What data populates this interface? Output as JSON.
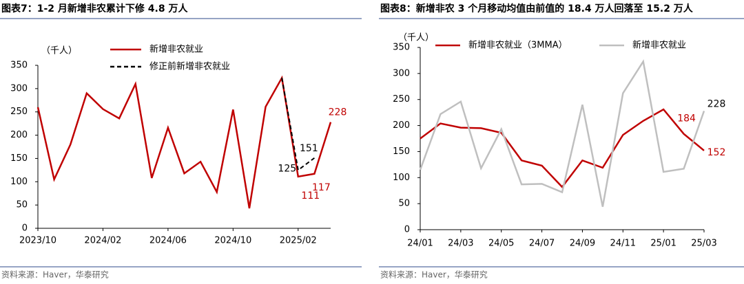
{
  "chart_data": [
    {
      "type": "line",
      "title": "图表7：1-2 月新增非农累计下修 4.8 万人",
      "unit": "（千人）",
      "source": "资料来源：Haver，华泰研究",
      "categories": [
        "2023/10",
        null,
        null,
        null,
        "2024/02",
        null,
        null,
        null,
        "2024/06",
        null,
        null,
        null,
        "2024/10",
        null,
        null,
        null,
        "2025/02",
        null,
        null
      ],
      "series": [
        {
          "name": "新增非农就业",
          "color": "#c00000",
          "dash": false,
          "label_points": [
            16,
            17,
            18
          ],
          "values": [
            260,
            105,
            180,
            290,
            256,
            236,
            310,
            108,
            216,
            118,
            143,
            78,
            255,
            43,
            261,
            323,
            111,
            117,
            228
          ]
        },
        {
          "name": "修正前新增非农就业",
          "color": "#000000",
          "dash": true,
          "label_points": [
            16,
            17
          ],
          "values": [
            null,
            null,
            null,
            null,
            null,
            null,
            null,
            null,
            null,
            null,
            null,
            null,
            null,
            null,
            null,
            323,
            125,
            151,
            null
          ]
        }
      ],
      "ylim": [
        0,
        350
      ],
      "yticks": [
        0,
        50,
        100,
        150,
        200,
        250,
        300,
        350
      ]
    },
    {
      "type": "line",
      "title": "图表8：新增非农 3 个月移动均值由前值的 18.4 万人回落至 15.2 万人",
      "unit": "（千人）",
      "source": "资料来源：Haver，华泰研究",
      "categories": [
        "24/01",
        null,
        "24/03",
        null,
        "24/05",
        null,
        "24/07",
        null,
        "24/09",
        null,
        "24/11",
        null,
        "25/01",
        null,
        "25/03"
      ],
      "series": [
        {
          "name": "新增非农就业（3MMA）",
          "color": "#c00000",
          "dash": false,
          "label_points": [
            13,
            14
          ],
          "values": [
            175,
            204,
            196,
            195,
            186,
            133,
            123,
            82,
            133,
            119,
            182,
            209,
            231,
            184,
            152
          ]
        },
        {
          "name": "新增非农就业",
          "color": "#bfbfbf",
          "dash": false,
          "label_points": [
            14
          ],
          "values": [
            115,
            222,
            246,
            118,
            193,
            87,
            88,
            72,
            240,
            44,
            262,
            323,
            111,
            117,
            228
          ]
        }
      ],
      "ylim": [
        0,
        350
      ],
      "yticks": [
        0,
        50,
        100,
        150,
        200,
        250,
        300,
        350
      ]
    }
  ]
}
